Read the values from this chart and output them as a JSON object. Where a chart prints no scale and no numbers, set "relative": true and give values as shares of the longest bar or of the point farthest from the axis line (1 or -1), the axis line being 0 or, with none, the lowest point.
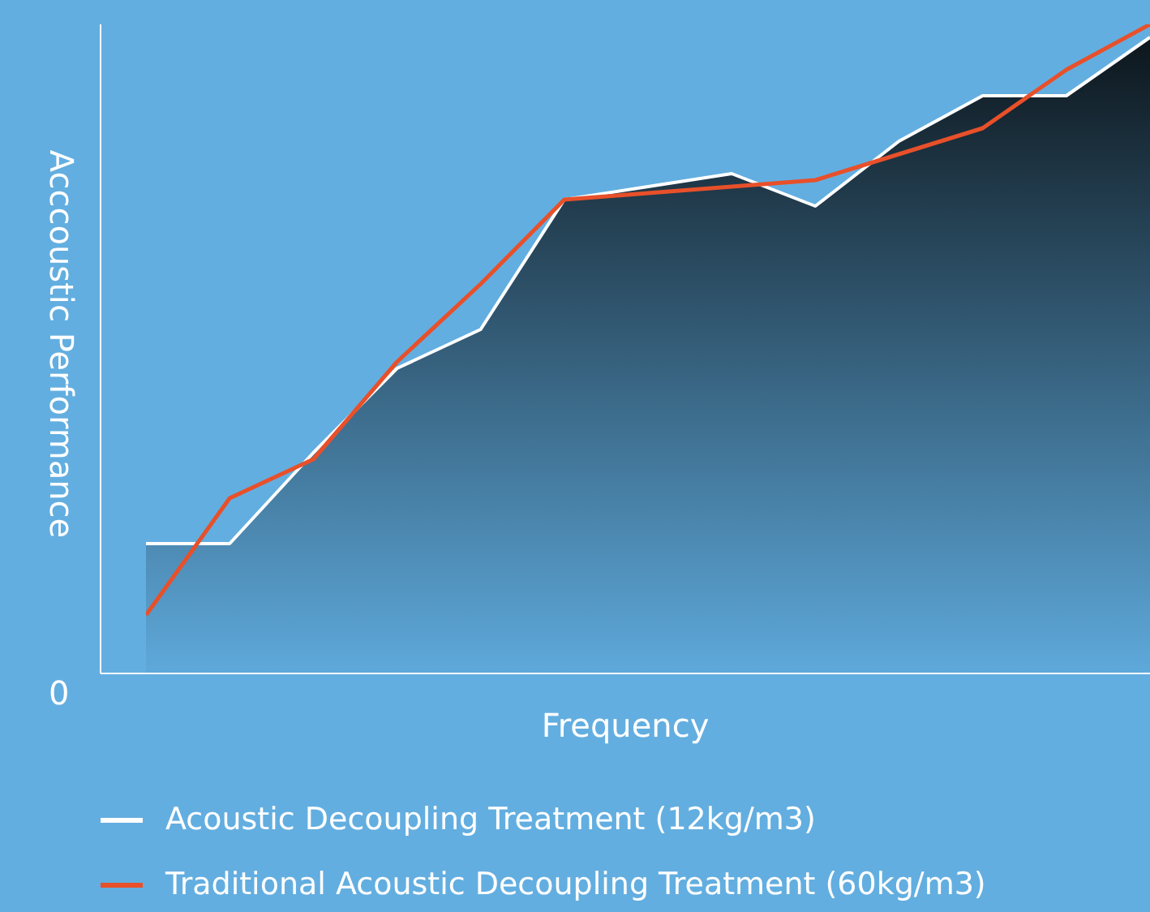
{
  "chart_data": {
    "type": "line",
    "relative": true,
    "xlabel": "Frequency",
    "ylabel": "Acccoustic Performance",
    "annotations": [
      "0"
    ],
    "categories": [
      null,
      null,
      null,
      null,
      null,
      null,
      null,
      null,
      null,
      null,
      null,
      null,
      null
    ],
    "legend": "bottom",
    "series": [
      {
        "name": "Acoustic Decoupling Treatment (12kg/m3)",
        "type": "area",
        "color": "#ffffff",
        "values": [
          0.2,
          0.2,
          0.34,
          0.47,
          0.53,
          0.73,
          0.75,
          0.77,
          0.72,
          0.82,
          0.89,
          0.89,
          0.98
        ]
      },
      {
        "name": "Traditional Acoustic Decoupling Treatment (60kg/m3)",
        "type": "line",
        "color": "#e8502a",
        "values": [
          0.09,
          0.27,
          0.33,
          0.48,
          0.6,
          0.73,
          0.74,
          0.75,
          0.76,
          0.8,
          0.84,
          0.93,
          1
        ]
      }
    ]
  }
}
